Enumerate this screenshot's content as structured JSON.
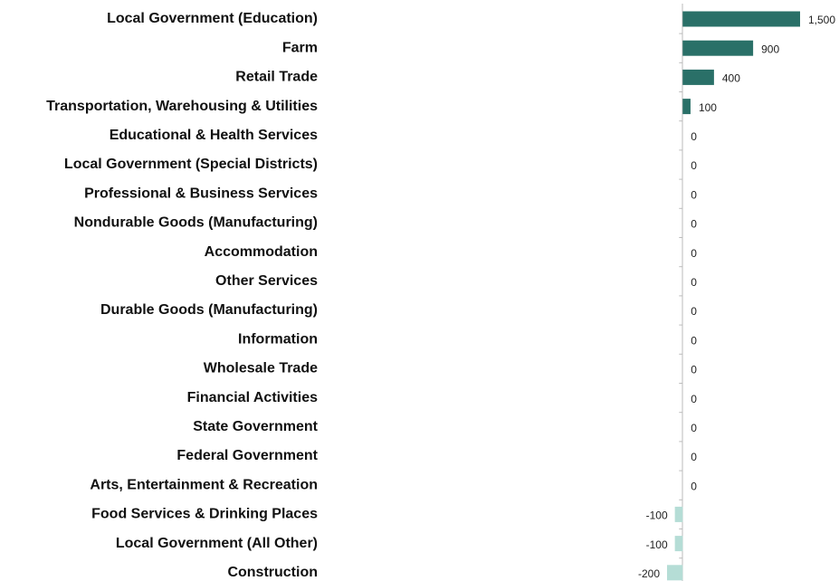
{
  "chart_data": {
    "type": "hbar",
    "categories": [
      "Local Government (Education)",
      "Farm",
      "Retail Trade",
      "Transportation, Warehousing & Utilities",
      "Educational & Health Services",
      "Local Government (Special Districts)",
      "Professional & Business Services",
      "Nondurable Goods (Manufacturing)",
      "Accommodation",
      "Other Services",
      "Durable Goods (Manufacturing)",
      "Information",
      "Wholesale Trade",
      "Financial Activities",
      "State Government",
      "Federal Government",
      "Arts, Entertainment & Recreation",
      "Food Services & Drinking Places",
      "Local Government (All Other)",
      "Construction"
    ],
    "values": [
      1500,
      900,
      400,
      100,
      0,
      0,
      0,
      0,
      0,
      0,
      0,
      0,
      0,
      0,
      0,
      0,
      0,
      -100,
      -100,
      -200
    ],
    "value_labels": [
      "1,500",
      "900",
      "400",
      "100",
      "0",
      "0",
      "0",
      "0",
      "0",
      "0",
      "0",
      "0",
      "0",
      "0",
      "0",
      "0",
      "0",
      "-100",
      "-100",
      "-200"
    ],
    "xlim": [
      -200,
      1500
    ],
    "positive_color": "#2a7068",
    "negative_color": "#b5ddd6"
  }
}
